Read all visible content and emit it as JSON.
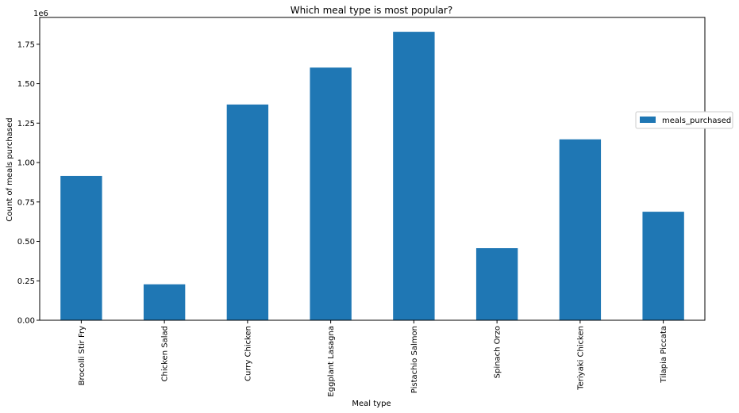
{
  "chart_data": {
    "type": "bar",
    "title": "Which meal type is most popular?",
    "xlabel": "Meal type",
    "ylabel": "Count of meals purchased",
    "y_multiplier_label": "1e6",
    "categories": [
      "Brocolli Stir Fry",
      "Chicken Salad",
      "Curry Chicken",
      "Eggplant Lasagna",
      "Pistachio Salmon",
      "Spinach Orzo",
      "Teriyaki Chicken",
      "Tilapia Piccata"
    ],
    "series": [
      {
        "name": "meals_purchased",
        "color": "#1f77b4",
        "values": [
          0.915,
          0.228,
          1.368,
          1.602,
          1.829,
          0.457,
          1.147,
          0.688
        ]
      }
    ],
    "ylim": [
      0,
      1.92
    ],
    "yticks": [
      0,
      0.25,
      0.5,
      0.75,
      1.0,
      1.25,
      1.5,
      1.75
    ],
    "ytick_labels": [
      "0.00",
      "0.25",
      "0.50",
      "0.75",
      "1.00",
      "1.25",
      "1.50",
      "1.75"
    ],
    "grid": false,
    "legend_position": "right"
  }
}
